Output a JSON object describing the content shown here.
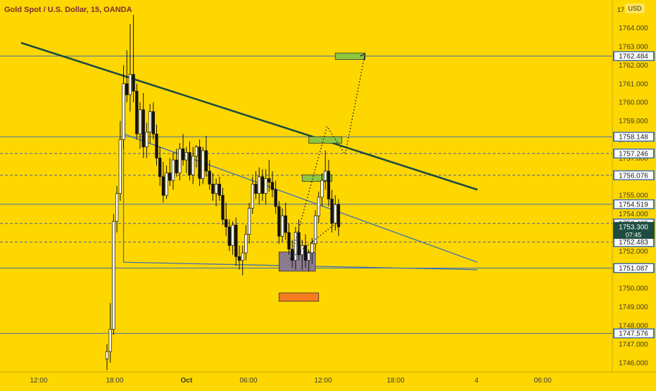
{
  "header": {
    "title": "Gold Spot / U.S. Dollar, 15, OANDA",
    "currency": "USD"
  },
  "colors": {
    "background": "#FFD700",
    "candle_body": "#FFFFFF",
    "candle_outline": "#111111",
    "trendline_main": "#1E4D40",
    "level_line": "#3D6FB3",
    "dashed_line": "#4A5EA0",
    "green_zone": "#8DC63F",
    "orange_zone": "#F57C20",
    "purple_zone": "#8C7A8F",
    "label_bg": "#3D6FB3",
    "current_label_bg": "#1E4D40"
  },
  "chart_data": {
    "type": "candlestick",
    "title": "Gold Spot / U.S. Dollar, 15, OANDA",
    "xlabel": "",
    "ylabel": "",
    "x_ticks": [
      "12:00",
      "18:00",
      "Oct",
      "06:00",
      "12:00",
      "18:00",
      "4",
      "06:00"
    ],
    "y_ticks": [
      1746.0,
      1747.0,
      1748.0,
      1749.0,
      1750.0,
      1751.0,
      1752.0,
      1753.0,
      1754.0,
      1755.0,
      1756.0,
      1757.0,
      1758.0,
      1759.0,
      1760.0,
      1761.0,
      1762.0,
      1763.0,
      1764.0
    ],
    "ylim": [
      1745.5,
      1765.5
    ],
    "y_top_label_partial": "17",
    "candles": [
      {
        "open": 1746.2,
        "high": 1747.0,
        "low": 1745.6,
        "close": 1746.6
      },
      {
        "open": 1746.6,
        "high": 1749.2,
        "low": 1746.0,
        "close": 1747.8
      },
      {
        "open": 1747.8,
        "high": 1754.0,
        "low": 1747.5,
        "close": 1753.6
      },
      {
        "open": 1753.6,
        "high": 1755.5,
        "low": 1753.0,
        "close": 1755.1
      },
      {
        "open": 1755.1,
        "high": 1759.0,
        "low": 1754.7,
        "close": 1758.0
      },
      {
        "open": 1758.0,
        "high": 1762.0,
        "low": 1757.5,
        "close": 1761.0
      },
      {
        "open": 1761.0,
        "high": 1762.8,
        "low": 1760.0,
        "close": 1760.4
      },
      {
        "open": 1760.4,
        "high": 1764.2,
        "low": 1759.5,
        "close": 1761.5
      },
      {
        "open": 1761.5,
        "high": 1764.7,
        "low": 1760.0,
        "close": 1760.6
      },
      {
        "open": 1760.6,
        "high": 1761.0,
        "low": 1758.0,
        "close": 1758.3
      },
      {
        "open": 1758.3,
        "high": 1760.0,
        "low": 1757.5,
        "close": 1759.6
      },
      {
        "open": 1759.6,
        "high": 1760.5,
        "low": 1757.0,
        "close": 1757.6
      },
      {
        "open": 1757.6,
        "high": 1758.9,
        "low": 1757.0,
        "close": 1758.4
      },
      {
        "open": 1758.4,
        "high": 1759.9,
        "low": 1757.8,
        "close": 1759.5
      },
      {
        "open": 1759.5,
        "high": 1760.0,
        "low": 1758.0,
        "close": 1758.3
      },
      {
        "open": 1758.3,
        "high": 1758.8,
        "low": 1756.6,
        "close": 1757.0
      },
      {
        "open": 1757.0,
        "high": 1757.6,
        "low": 1755.5,
        "close": 1756.0
      },
      {
        "open": 1756.0,
        "high": 1756.8,
        "low": 1754.6,
        "close": 1755.0
      },
      {
        "open": 1755.0,
        "high": 1756.6,
        "low": 1754.8,
        "close": 1756.2
      },
      {
        "open": 1756.2,
        "high": 1757.0,
        "low": 1755.5,
        "close": 1755.8
      },
      {
        "open": 1755.8,
        "high": 1757.3,
        "low": 1755.3,
        "close": 1756.9
      },
      {
        "open": 1756.9,
        "high": 1757.5,
        "low": 1756.0,
        "close": 1756.2
      },
      {
        "open": 1756.2,
        "high": 1757.8,
        "low": 1755.8,
        "close": 1757.5
      },
      {
        "open": 1757.5,
        "high": 1758.3,
        "low": 1756.6,
        "close": 1756.9
      },
      {
        "open": 1756.9,
        "high": 1757.6,
        "low": 1756.2,
        "close": 1757.3
      },
      {
        "open": 1757.3,
        "high": 1757.9,
        "low": 1755.8,
        "close": 1756.1
      },
      {
        "open": 1756.1,
        "high": 1757.6,
        "low": 1755.6,
        "close": 1757.1
      },
      {
        "open": 1757.1,
        "high": 1757.7,
        "low": 1756.5,
        "close": 1757.6
      },
      {
        "open": 1757.6,
        "high": 1758.0,
        "low": 1755.5,
        "close": 1755.9
      },
      {
        "open": 1755.9,
        "high": 1757.6,
        "low": 1755.6,
        "close": 1757.4
      },
      {
        "open": 1757.4,
        "high": 1758.2,
        "low": 1756.0,
        "close": 1756.3
      },
      {
        "open": 1756.3,
        "high": 1756.9,
        "low": 1755.3,
        "close": 1755.6
      },
      {
        "open": 1755.6,
        "high": 1756.2,
        "low": 1754.7,
        "close": 1755.1
      },
      {
        "open": 1755.1,
        "high": 1755.9,
        "low": 1754.4,
        "close": 1755.6
      },
      {
        "open": 1755.6,
        "high": 1756.0,
        "low": 1754.7,
        "close": 1755.0
      },
      {
        "open": 1755.0,
        "high": 1755.4,
        "low": 1753.4,
        "close": 1753.7
      },
      {
        "open": 1753.7,
        "high": 1754.6,
        "low": 1752.8,
        "close": 1753.3
      },
      {
        "open": 1753.3,
        "high": 1753.7,
        "low": 1752.0,
        "close": 1752.3
      },
      {
        "open": 1752.3,
        "high": 1753.6,
        "low": 1751.8,
        "close": 1753.4
      },
      {
        "open": 1753.4,
        "high": 1753.8,
        "low": 1751.2,
        "close": 1751.7
      },
      {
        "open": 1751.7,
        "high": 1752.3,
        "low": 1751.0,
        "close": 1751.5
      },
      {
        "open": 1751.5,
        "high": 1752.3,
        "low": 1750.7,
        "close": 1751.9
      },
      {
        "open": 1751.9,
        "high": 1753.4,
        "low": 1751.5,
        "close": 1752.9
      },
      {
        "open": 1752.9,
        "high": 1754.6,
        "low": 1752.4,
        "close": 1754.3
      },
      {
        "open": 1754.3,
        "high": 1756.0,
        "low": 1754.0,
        "close": 1755.6
      },
      {
        "open": 1755.6,
        "high": 1756.3,
        "low": 1754.8,
        "close": 1755.1
      },
      {
        "open": 1755.1,
        "high": 1756.5,
        "low": 1754.5,
        "close": 1756.0
      },
      {
        "open": 1756.0,
        "high": 1756.4,
        "low": 1754.7,
        "close": 1755.1
      },
      {
        "open": 1755.1,
        "high": 1756.4,
        "low": 1754.5,
        "close": 1755.9
      },
      {
        "open": 1755.9,
        "high": 1756.9,
        "low": 1755.2,
        "close": 1755.7
      },
      {
        "open": 1755.7,
        "high": 1756.3,
        "low": 1754.9,
        "close": 1755.3
      },
      {
        "open": 1755.3,
        "high": 1755.8,
        "low": 1754.0,
        "close": 1754.4
      },
      {
        "open": 1754.4,
        "high": 1754.7,
        "low": 1752.4,
        "close": 1752.8
      },
      {
        "open": 1752.8,
        "high": 1754.3,
        "low": 1752.5,
        "close": 1753.9
      },
      {
        "open": 1753.9,
        "high": 1754.6,
        "low": 1752.6,
        "close": 1753.0
      },
      {
        "open": 1753.0,
        "high": 1753.5,
        "low": 1751.8,
        "close": 1752.1
      },
      {
        "open": 1752.1,
        "high": 1752.6,
        "low": 1751.1,
        "close": 1751.5
      },
      {
        "open": 1751.5,
        "high": 1753.3,
        "low": 1751.0,
        "close": 1753.0
      },
      {
        "open": 1753.0,
        "high": 1753.7,
        "low": 1751.5,
        "close": 1751.8
      },
      {
        "open": 1751.8,
        "high": 1752.6,
        "low": 1751.0,
        "close": 1752.3
      },
      {
        "open": 1752.3,
        "high": 1752.9,
        "low": 1751.1,
        "close": 1751.5
      },
      {
        "open": 1751.5,
        "high": 1752.1,
        "low": 1750.9,
        "close": 1751.9
      },
      {
        "open": 1751.9,
        "high": 1752.7,
        "low": 1751.3,
        "close": 1752.4
      },
      {
        "open": 1752.4,
        "high": 1754.2,
        "low": 1752.0,
        "close": 1753.9
      },
      {
        "open": 1753.9,
        "high": 1755.2,
        "low": 1753.5,
        "close": 1754.9
      },
      {
        "open": 1754.9,
        "high": 1756.2,
        "low": 1754.4,
        "close": 1755.8
      },
      {
        "open": 1755.8,
        "high": 1757.4,
        "low": 1755.3,
        "close": 1756.3
      },
      {
        "open": 1756.3,
        "high": 1756.9,
        "low": 1754.4,
        "close": 1754.8
      },
      {
        "open": 1754.8,
        "high": 1755.3,
        "low": 1753.0,
        "close": 1753.5
      },
      {
        "open": 1753.5,
        "high": 1755.0,
        "low": 1753.1,
        "close": 1754.5
      },
      {
        "open": 1754.5,
        "high": 1754.8,
        "low": 1752.8,
        "close": 1753.3
      }
    ],
    "horizontal_levels": [
      1762.484,
      1758.148,
      1754.519,
      1751.087,
      1747.576
    ],
    "dashed_levels": [
      1757.246,
      1756.076,
      1753.485,
      1752.483
    ],
    "current_price": {
      "value": "1753.300",
      "countdown": "07:45"
    },
    "price_labels": [
      {
        "text": "1762.484",
        "value": 1762.484
      },
      {
        "text": "1758.148",
        "value": 1758.148
      },
      {
        "text": "1757.246",
        "value": 1757.246
      },
      {
        "text": "1756.076",
        "value": 1756.076
      },
      {
        "text": "1754.519",
        "value": 1754.519
      },
      {
        "text": "1753.485",
        "value": 1753.485
      },
      {
        "text": "1752.483",
        "value": 1752.483
      },
      {
        "text": "1751.087",
        "value": 1751.087
      },
      {
        "text": "1747.576",
        "value": 1747.576
      }
    ],
    "trendlines": [
      {
        "name": "main-downtrend",
        "from": {
          "bar": -26,
          "price": 1763.2
        },
        "to": {
          "bar": 112,
          "price": 1755.3
        }
      },
      {
        "name": "channel-upper",
        "from": {
          "bar": 5,
          "price": 1758.3
        },
        "to": {
          "bar": 112,
          "price": 1751.4
        }
      },
      {
        "name": "channel-lower",
        "from": {
          "bar": 5,
          "price": 1751.4
        },
        "to": {
          "bar": 112,
          "price": 1751.0
        }
      },
      {
        "name": "channel-left-edge",
        "from": {
          "bar": 5,
          "price": 1758.3
        },
        "to": {
          "bar": 5,
          "price": 1751.4
        }
      }
    ],
    "zones": [
      {
        "name": "green-target-top",
        "bar_from": 69,
        "bar_to": 78,
        "price_from": 1762.3,
        "price_to": 1762.65,
        "color": "green"
      },
      {
        "name": "green-target-mid",
        "bar_from": 61,
        "bar_to": 71,
        "price_from": 1757.8,
        "price_to": 1758.15,
        "color": "green"
      },
      {
        "name": "green-target-low",
        "bar_from": 59,
        "bar_to": 68,
        "price_from": 1755.75,
        "price_to": 1756.1,
        "color": "green"
      },
      {
        "name": "purple-demand",
        "bar_from": 52,
        "bar_to": 63,
        "price_from": 1750.92,
        "price_to": 1751.95,
        "color": "purple"
      },
      {
        "name": "orange-stop",
        "bar_from": 52,
        "bar_to": 64,
        "price_from": 1749.3,
        "price_to": 1749.75,
        "color": "orange"
      }
    ],
    "projection_path": [
      {
        "bar": 70,
        "price": 1753.6
      },
      {
        "bar": 55.5,
        "price": 1751.6
      },
      {
        "bar": 66.5,
        "price": 1758.7
      },
      {
        "bar": 72,
        "price": 1757.2
      },
      {
        "bar": 78,
        "price": 1762.6
      }
    ],
    "grid": false,
    "legend": "none"
  }
}
